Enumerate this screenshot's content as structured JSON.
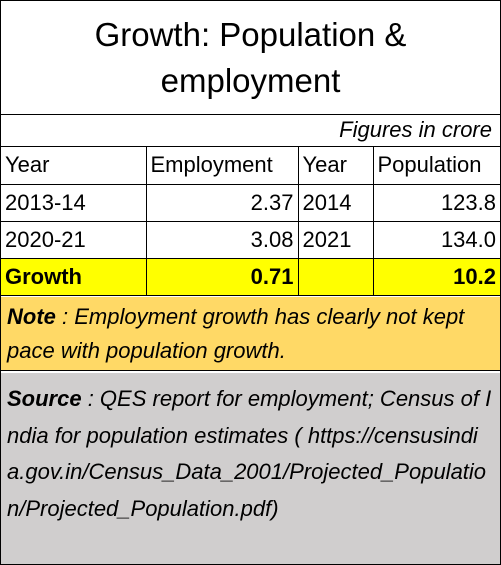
{
  "title": {
    "line1": "Growth: Population  &",
    "line2": "employment"
  },
  "figures_note": "Figures in crore",
  "table": {
    "headers": [
      "Year",
      "Employment",
      "Year",
      "Population"
    ],
    "rows": [
      [
        "2013-14",
        "2.37",
        "2014",
        "123.8"
      ],
      [
        "2020-21",
        "3.08",
        "2021",
        "134.0"
      ]
    ],
    "growth": [
      "Growth",
      "0.71",
      "",
      "10.2"
    ]
  },
  "note": {
    "label": "Note",
    "text": " : Employment growth has clearly not kept pace with population growth."
  },
  "source": {
    "label": "Source",
    "text": " : QES report for employment; Census of India for population estimates ( https://censusindia.gov.in/Census_Data_2001/Projected_Population/Projected_Population.pdf)"
  },
  "colors": {
    "growth_row": "#ffff00",
    "note_bg": "#ffd966",
    "source_bg": "#d0cece"
  }
}
